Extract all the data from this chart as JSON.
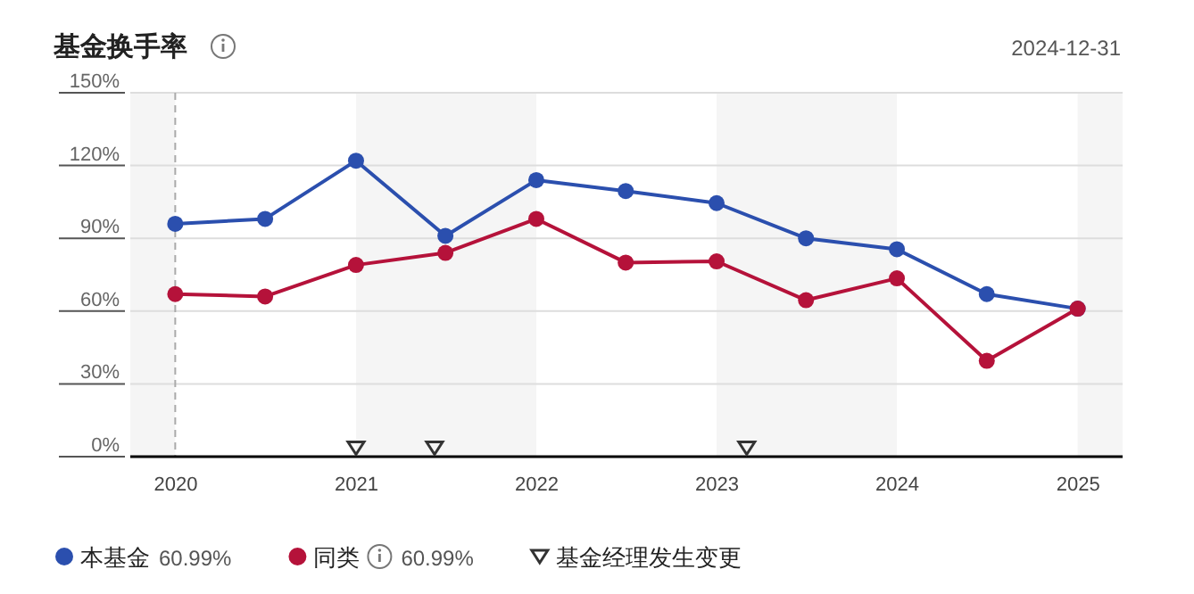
{
  "chart_data": {
    "type": "line",
    "title": "基金换手率",
    "subtitle": "2024-12-31",
    "x": [
      "2019-12-31",
      "2020-06-30",
      "2020-12-31",
      "2021-06-30",
      "2021-12-31",
      "2022-06-30",
      "2022-12-31",
      "2023-06-30",
      "2023-12-31",
      "2024-06-30",
      "2024-12-31"
    ],
    "series": [
      {
        "name": "本基金",
        "color": "#2b4fae",
        "values": [
          96,
          98,
          122,
          91,
          114,
          109.5,
          104.5,
          90,
          85.5,
          67,
          60.99
        ]
      },
      {
        "name": "同类",
        "color": "#b5123a",
        "values": [
          67,
          66,
          79,
          84,
          98,
          80,
          80.5,
          64.5,
          73.5,
          39.5,
          60.99
        ]
      },
      {
        "name": "基金经理发生变更",
        "type": "scatter",
        "color": "#333333",
        "marker": "triangle",
        "x": [
          "2020-12-31",
          "2021-06-08",
          "2023-03-02"
        ],
        "values": [
          3.5,
          3.5,
          3.5
        ]
      }
    ],
    "annotations": [
      "60.99%",
      "60.99%"
    ],
    "xlim": [
      "2019-10-01",
      "2025-04-01"
    ],
    "xticks": [
      {
        "value": "2020-01-01",
        "label": "2020"
      },
      {
        "value": "2021-01-01",
        "label": "2021"
      },
      {
        "value": "2022-01-01",
        "label": "2022"
      },
      {
        "value": "2023-01-01",
        "label": "2023"
      },
      {
        "value": "2024-01-01",
        "label": "2024"
      },
      {
        "value": "2025-01-01",
        "label": "2025"
      }
    ],
    "ylim": [
      0,
      150
    ],
    "yticks": [
      {
        "value": 0,
        "label": "0%"
      },
      {
        "value": 30,
        "label": "30%"
      },
      {
        "value": 60,
        "label": "60%"
      },
      {
        "value": 90,
        "label": "90%"
      },
      {
        "value": 120,
        "label": "120%"
      },
      {
        "value": 150,
        "label": "150%"
      }
    ],
    "bands": [
      {
        "axis": "x",
        "from": "2019-10-01",
        "to": "2019-12-31",
        "color": "#f5f5f5"
      },
      {
        "axis": "x",
        "from": "2020-12-31",
        "to": "2021-12-31",
        "color": "#f5f5f5"
      },
      {
        "axis": "x",
        "from": "2022-12-31",
        "to": "2023-12-31",
        "color": "#f5f5f5"
      },
      {
        "axis": "x",
        "from": "2024-12-31",
        "to": "2025-04-01",
        "color": "#f5f5f5"
      }
    ],
    "ref_lines": [
      {
        "axis": "x",
        "value": "2019-12-31",
        "color": "#aaaaaa",
        "line_style": "dashed"
      }
    ],
    "grid": "y",
    "legend": "bottom",
    "marker": "circle",
    "line_style": "solid"
  }
}
